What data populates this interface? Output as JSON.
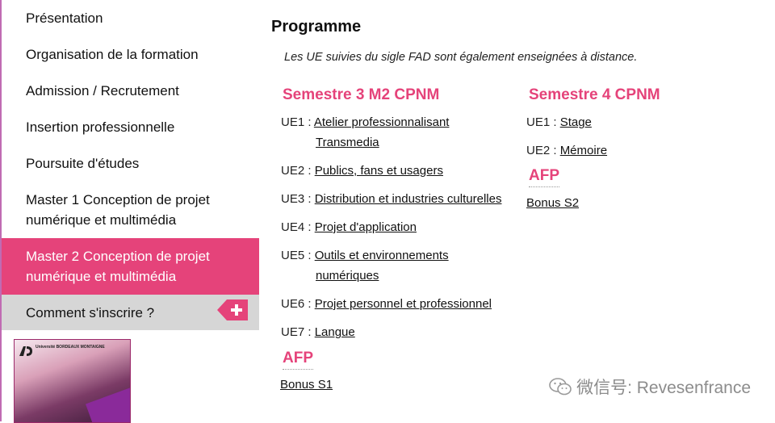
{
  "sidebar": {
    "items": [
      {
        "label": "Présentation"
      },
      {
        "label": "Organisation de la formation"
      },
      {
        "label": "Admission / Recrutement"
      },
      {
        "label": "Insertion professionnelle"
      },
      {
        "label": "Poursuite d'études"
      },
      {
        "label": "Master 1 Conception de projet numérique et multimédia"
      },
      {
        "label": "Master 2 Conception de projet numérique et multimédia"
      },
      {
        "label": "Comment s'inscrire ?"
      }
    ],
    "thumbnail_logo_text": "Université BORDEAUX MONTAIGNE"
  },
  "main": {
    "heading": "Programme",
    "note": "Les UE suivies du sigle FAD sont également enseignées à distance.",
    "semester3": {
      "title": "Semestre 3 M2 CPNM",
      "ues": [
        {
          "code": "UE1 :",
          "line1": "Atelier professionnalisant",
          "line2": "Transmedia"
        },
        {
          "code": "UE2 :",
          "line1": "Publics, fans et usagers",
          "line2": ""
        },
        {
          "code": "UE3 :",
          "line1": "Distribution et industries culturelles",
          "line2": ""
        },
        {
          "code": "UE4 :",
          "line1": "Projet d'application",
          "line2": ""
        },
        {
          "code": "UE5 :",
          "line1": "Outils et environnements",
          "line2": "numériques"
        },
        {
          "code": "UE6 :",
          "line1": "Projet personnel et professionnel",
          "line2": ""
        },
        {
          "code": "UE7 :",
          "line1": "Langue",
          "line2": ""
        }
      ],
      "afp": "AFP",
      "bonus": "Bonus S1"
    },
    "semester4": {
      "title": "Semestre 4 CPNM",
      "ues": [
        {
          "code": "UE1 :",
          "line1": "Stage"
        },
        {
          "code": "UE2 :",
          "line1": "Mémoire"
        }
      ],
      "afp": "AFP",
      "bonus": "Bonus S2"
    }
  },
  "watermark": "微信号: Revesenfrance",
  "colors": {
    "accent": "#e5437a",
    "sidebar_gray": "#d6d6d6",
    "left_rule": "#c06bb3"
  }
}
